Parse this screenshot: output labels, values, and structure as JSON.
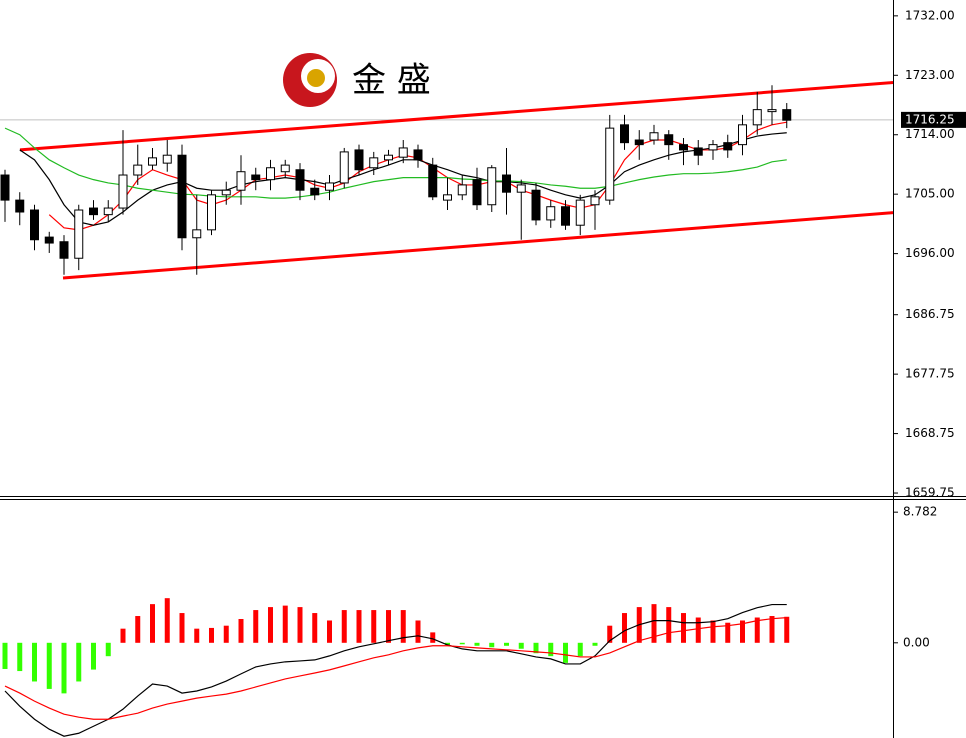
{
  "chart_data": [
    {
      "type": "candlestick",
      "logo_text": "金 盛",
      "ylim": [
        1659.3,
        1734.4
      ],
      "yticks": [
        {
          "value": 1732,
          "label": "1732.00"
        },
        {
          "value": 1723,
          "label": "1723.00"
        },
        {
          "value": 1714,
          "label": "1714.00"
        },
        {
          "value": 1705,
          "label": "1705.00"
        },
        {
          "value": 1696,
          "label": "1696.00"
        },
        {
          "value": 1686.75,
          "label": "1686.75"
        },
        {
          "value": 1677.75,
          "label": "1677.75"
        },
        {
          "value": 1668.75,
          "label": "1668.75"
        },
        {
          "value": 1659.75,
          "label": "1659.75"
        }
      ],
      "last_price": {
        "value": 1716.25,
        "label": "1716.25"
      },
      "up_color": "#ffffff",
      "down_color": "#000000",
      "ohlc": [
        [
          1707.9,
          1708.7,
          1700.8,
          1704.1
        ],
        [
          1704.1,
          1705.3,
          1700.3,
          1702.3
        ],
        [
          1702.6,
          1703.4,
          1696.5,
          1698.1
        ],
        [
          1698.5,
          1699.3,
          1696.1,
          1697.6
        ],
        [
          1697.8,
          1698.8,
          1692.8,
          1695.3
        ],
        [
          1695.3,
          1703.4,
          1693.5,
          1702.6
        ],
        [
          1702.9,
          1704.1,
          1701.1,
          1701.9
        ],
        [
          1701.9,
          1704.1,
          1700.8,
          1702.9
        ],
        [
          1702.9,
          1714.7,
          1701.9,
          1707.9
        ],
        [
          1707.9,
          1712.5,
          1706.4,
          1709.4
        ],
        [
          1709.4,
          1712.0,
          1708.7,
          1710.5
        ],
        [
          1709.7,
          1713.2,
          1708.4,
          1710.9
        ],
        [
          1710.9,
          1712.5,
          1696.5,
          1698.4
        ],
        [
          1698.4,
          1704.9,
          1692.8,
          1699.6
        ],
        [
          1699.6,
          1705.6,
          1698.8,
          1704.9
        ],
        [
          1704.9,
          1706.9,
          1703.4,
          1705.6
        ],
        [
          1705.6,
          1710.9,
          1703.4,
          1708.4
        ],
        [
          1707.9,
          1709.0,
          1705.6,
          1707.2
        ],
        [
          1707.2,
          1710.2,
          1705.6,
          1709.0
        ],
        [
          1708.4,
          1710.2,
          1707.5,
          1709.4
        ],
        [
          1708.7,
          1709.7,
          1704.1,
          1705.6
        ],
        [
          1705.9,
          1707.2,
          1704.1,
          1704.9
        ],
        [
          1705.6,
          1707.9,
          1704.1,
          1706.7
        ],
        [
          1706.7,
          1712.0,
          1705.9,
          1711.4
        ],
        [
          1711.7,
          1712.5,
          1707.9,
          1708.7
        ],
        [
          1709.0,
          1711.4,
          1707.9,
          1710.5
        ],
        [
          1710.2,
          1711.7,
          1709.4,
          1710.9
        ],
        [
          1710.6,
          1713.2,
          1709.7,
          1712.0
        ],
        [
          1711.7,
          1712.5,
          1709.0,
          1710.2
        ],
        [
          1709.4,
          1710.5,
          1704.1,
          1704.6
        ],
        [
          1704.1,
          1707.5,
          1702.6,
          1704.9
        ],
        [
          1704.9,
          1707.9,
          1704.1,
          1706.4
        ],
        [
          1707.2,
          1709.0,
          1702.6,
          1703.4
        ],
        [
          1703.4,
          1709.4,
          1702.3,
          1709.0
        ],
        [
          1707.9,
          1712.0,
          1701.9,
          1705.3
        ],
        [
          1705.3,
          1707.2,
          1698.1,
          1706.4
        ],
        [
          1705.6,
          1706.7,
          1700.3,
          1701.1
        ],
        [
          1701.1,
          1704.1,
          1699.9,
          1703.1
        ],
        [
          1703.1,
          1704.1,
          1699.6,
          1700.3
        ],
        [
          1700.3,
          1704.9,
          1698.8,
          1704.1
        ],
        [
          1703.4,
          1705.6,
          1699.6,
          1704.6
        ],
        [
          1704.1,
          1717.0,
          1703.4,
          1715.0
        ],
        [
          1715.5,
          1717.0,
          1711.7,
          1712.8
        ],
        [
          1713.2,
          1714.7,
          1710.2,
          1712.5
        ],
        [
          1713.2,
          1715.5,
          1712.5,
          1714.3
        ],
        [
          1714.0,
          1714.7,
          1710.2,
          1712.5
        ],
        [
          1712.5,
          1713.5,
          1709.4,
          1711.7
        ],
        [
          1712.0,
          1713.2,
          1709.4,
          1710.9
        ],
        [
          1711.7,
          1713.2,
          1710.2,
          1712.5
        ],
        [
          1712.8,
          1714.0,
          1710.5,
          1711.7
        ],
        [
          1712.5,
          1717.0,
          1710.9,
          1715.5
        ],
        [
          1715.5,
          1720.5,
          1714.0,
          1717.8
        ],
        [
          1717.5,
          1721.5,
          1715.5,
          1717.8
        ],
        [
          1717.8,
          1718.8,
          1715.0,
          1716.2
        ]
      ],
      "series": [
        {
          "color": "#ff0000",
          "values": [
            null,
            null,
            null,
            1701.9,
            1699.9,
            1699.6,
            1700.3,
            1701.9,
            1704.1,
            1707.2,
            1708.7,
            1707.9,
            1707.2,
            1704.1,
            1703.4,
            1704.1,
            1705.6,
            1707.2,
            1707.5,
            1707.9,
            1707.5,
            1706.4,
            1705.9,
            1706.7,
            1708.4,
            1709.4,
            1710.2,
            1710.9,
            1710.5,
            1709.0,
            1707.5,
            1706.4,
            1706.4,
            1706.9,
            1706.9,
            1705.6,
            1704.9,
            1704.1,
            1703.4,
            1702.9,
            1703.4,
            1706.4,
            1710.2,
            1712.5,
            1713.2,
            1713.2,
            1712.5,
            1711.7,
            1711.7,
            1712.0,
            1713.2,
            1714.7,
            1715.5,
            1715.9
          ]
        },
        {
          "color": "#000000",
          "values": [
            null,
            1711.7,
            1710.2,
            1707.2,
            1703.4,
            1700.8,
            1700.3,
            1700.8,
            1702.3,
            1704.1,
            1705.6,
            1706.4,
            1706.9,
            1705.9,
            1705.6,
            1705.6,
            1706.4,
            1706.9,
            1707.2,
            1707.5,
            1707.2,
            1706.9,
            1706.4,
            1707.2,
            1707.9,
            1708.7,
            1709.4,
            1710.2,
            1710.2,
            1709.4,
            1708.7,
            1707.9,
            1707.5,
            1706.9,
            1706.9,
            1706.7,
            1706.4,
            1705.6,
            1704.9,
            1704.4,
            1704.9,
            1706.4,
            1708.4,
            1709.4,
            1710.2,
            1710.9,
            1711.4,
            1711.7,
            1712.0,
            1712.5,
            1713.2,
            1713.8,
            1714.1,
            1714.3
          ]
        },
        {
          "color": "#22bb22",
          "values": [
            1715.0,
            1714.0,
            1712.0,
            1710.2,
            1709.0,
            1707.9,
            1707.2,
            1706.7,
            1706.4,
            1705.9,
            1705.6,
            1705.3,
            1705.0,
            1704.9,
            1704.7,
            1704.6,
            1704.6,
            1704.6,
            1704.4,
            1704.4,
            1704.6,
            1704.9,
            1705.3,
            1705.9,
            1706.4,
            1706.9,
            1707.2,
            1707.5,
            1707.5,
            1707.5,
            1707.5,
            1707.3,
            1707.2,
            1707.0,
            1707.0,
            1706.9,
            1706.7,
            1706.4,
            1706.2,
            1705.9,
            1705.9,
            1706.2,
            1706.7,
            1707.2,
            1707.6,
            1707.9,
            1708.1,
            1708.1,
            1708.2,
            1708.4,
            1708.7,
            1709.1,
            1709.9,
            1710.2
          ]
        }
      ],
      "channel": {
        "color": "#ff0000",
        "upper": [
          1711.7,
          1721.9
        ],
        "lower": [
          1692.3,
          1702.2
        ]
      }
    },
    {
      "type": "macd",
      "ylim": [
        -6.4,
        9.6
      ],
      "yticks": [
        8.782,
        {
          "value": 0,
          "label": "0.00"
        }
      ],
      "pos_color": "#ff0000",
      "neg_color": "#33ff00",
      "values": [
        -1.76,
        -1.9,
        -2.6,
        -3.1,
        -3.4,
        -2.6,
        -1.8,
        -0.9,
        0.95,
        1.8,
        2.6,
        3.0,
        2.0,
        0.95,
        1.0,
        1.15,
        1.6,
        2.2,
        2.4,
        2.5,
        2.4,
        2.0,
        1.5,
        2.2,
        2.2,
        2.2,
        2.2,
        2.2,
        1.5,
        0.7,
        -0.15,
        -0.1,
        -0.2,
        -0.3,
        -0.2,
        -0.4,
        -0.7,
        -0.9,
        -1.35,
        -0.9,
        -0.2,
        1.15,
        2.0,
        2.4,
        2.6,
        2.4,
        2.0,
        1.7,
        1.5,
        1.35,
        1.5,
        1.7,
        1.8,
        1.75
      ],
      "series": [
        {
          "color": "#000000",
          "values": [
            -3.24,
            -4.26,
            -5.14,
            -5.81,
            -6.28,
            -6.08,
            -5.61,
            -5.14,
            -4.46,
            -3.58,
            -2.77,
            -2.91,
            -3.38,
            -3.24,
            -2.97,
            -2.57,
            -2.09,
            -1.62,
            -1.42,
            -1.28,
            -1.22,
            -1.15,
            -0.88,
            -0.54,
            -0.27,
            -0.07,
            0.14,
            0.34,
            0.47,
            0.27,
            -0.14,
            -0.41,
            -0.54,
            -0.54,
            -0.54,
            -0.74,
            -0.95,
            -1.08,
            -1.42,
            -1.42,
            -0.88,
            0.14,
            0.81,
            1.22,
            1.49,
            1.49,
            1.35,
            1.35,
            1.42,
            1.62,
            2.03,
            2.36,
            2.57,
            2.57
          ]
        },
        {
          "color": "#ff0000",
          "values": [
            -2.91,
            -3.38,
            -3.92,
            -4.39,
            -4.8,
            -5.0,
            -5.14,
            -5.14,
            -4.93,
            -4.73,
            -4.39,
            -4.12,
            -3.92,
            -3.72,
            -3.58,
            -3.45,
            -3.24,
            -2.97,
            -2.7,
            -2.43,
            -2.23,
            -2.03,
            -1.82,
            -1.55,
            -1.28,
            -1.01,
            -0.81,
            -0.54,
            -0.34,
            -0.2,
            -0.2,
            -0.27,
            -0.34,
            -0.41,
            -0.47,
            -0.54,
            -0.61,
            -0.68,
            -0.81,
            -0.95,
            -0.95,
            -0.68,
            -0.27,
            0.14,
            0.41,
            0.68,
            0.81,
            0.95,
            1.08,
            1.15,
            1.28,
            1.49,
            1.62,
            1.69
          ]
        }
      ]
    }
  ]
}
